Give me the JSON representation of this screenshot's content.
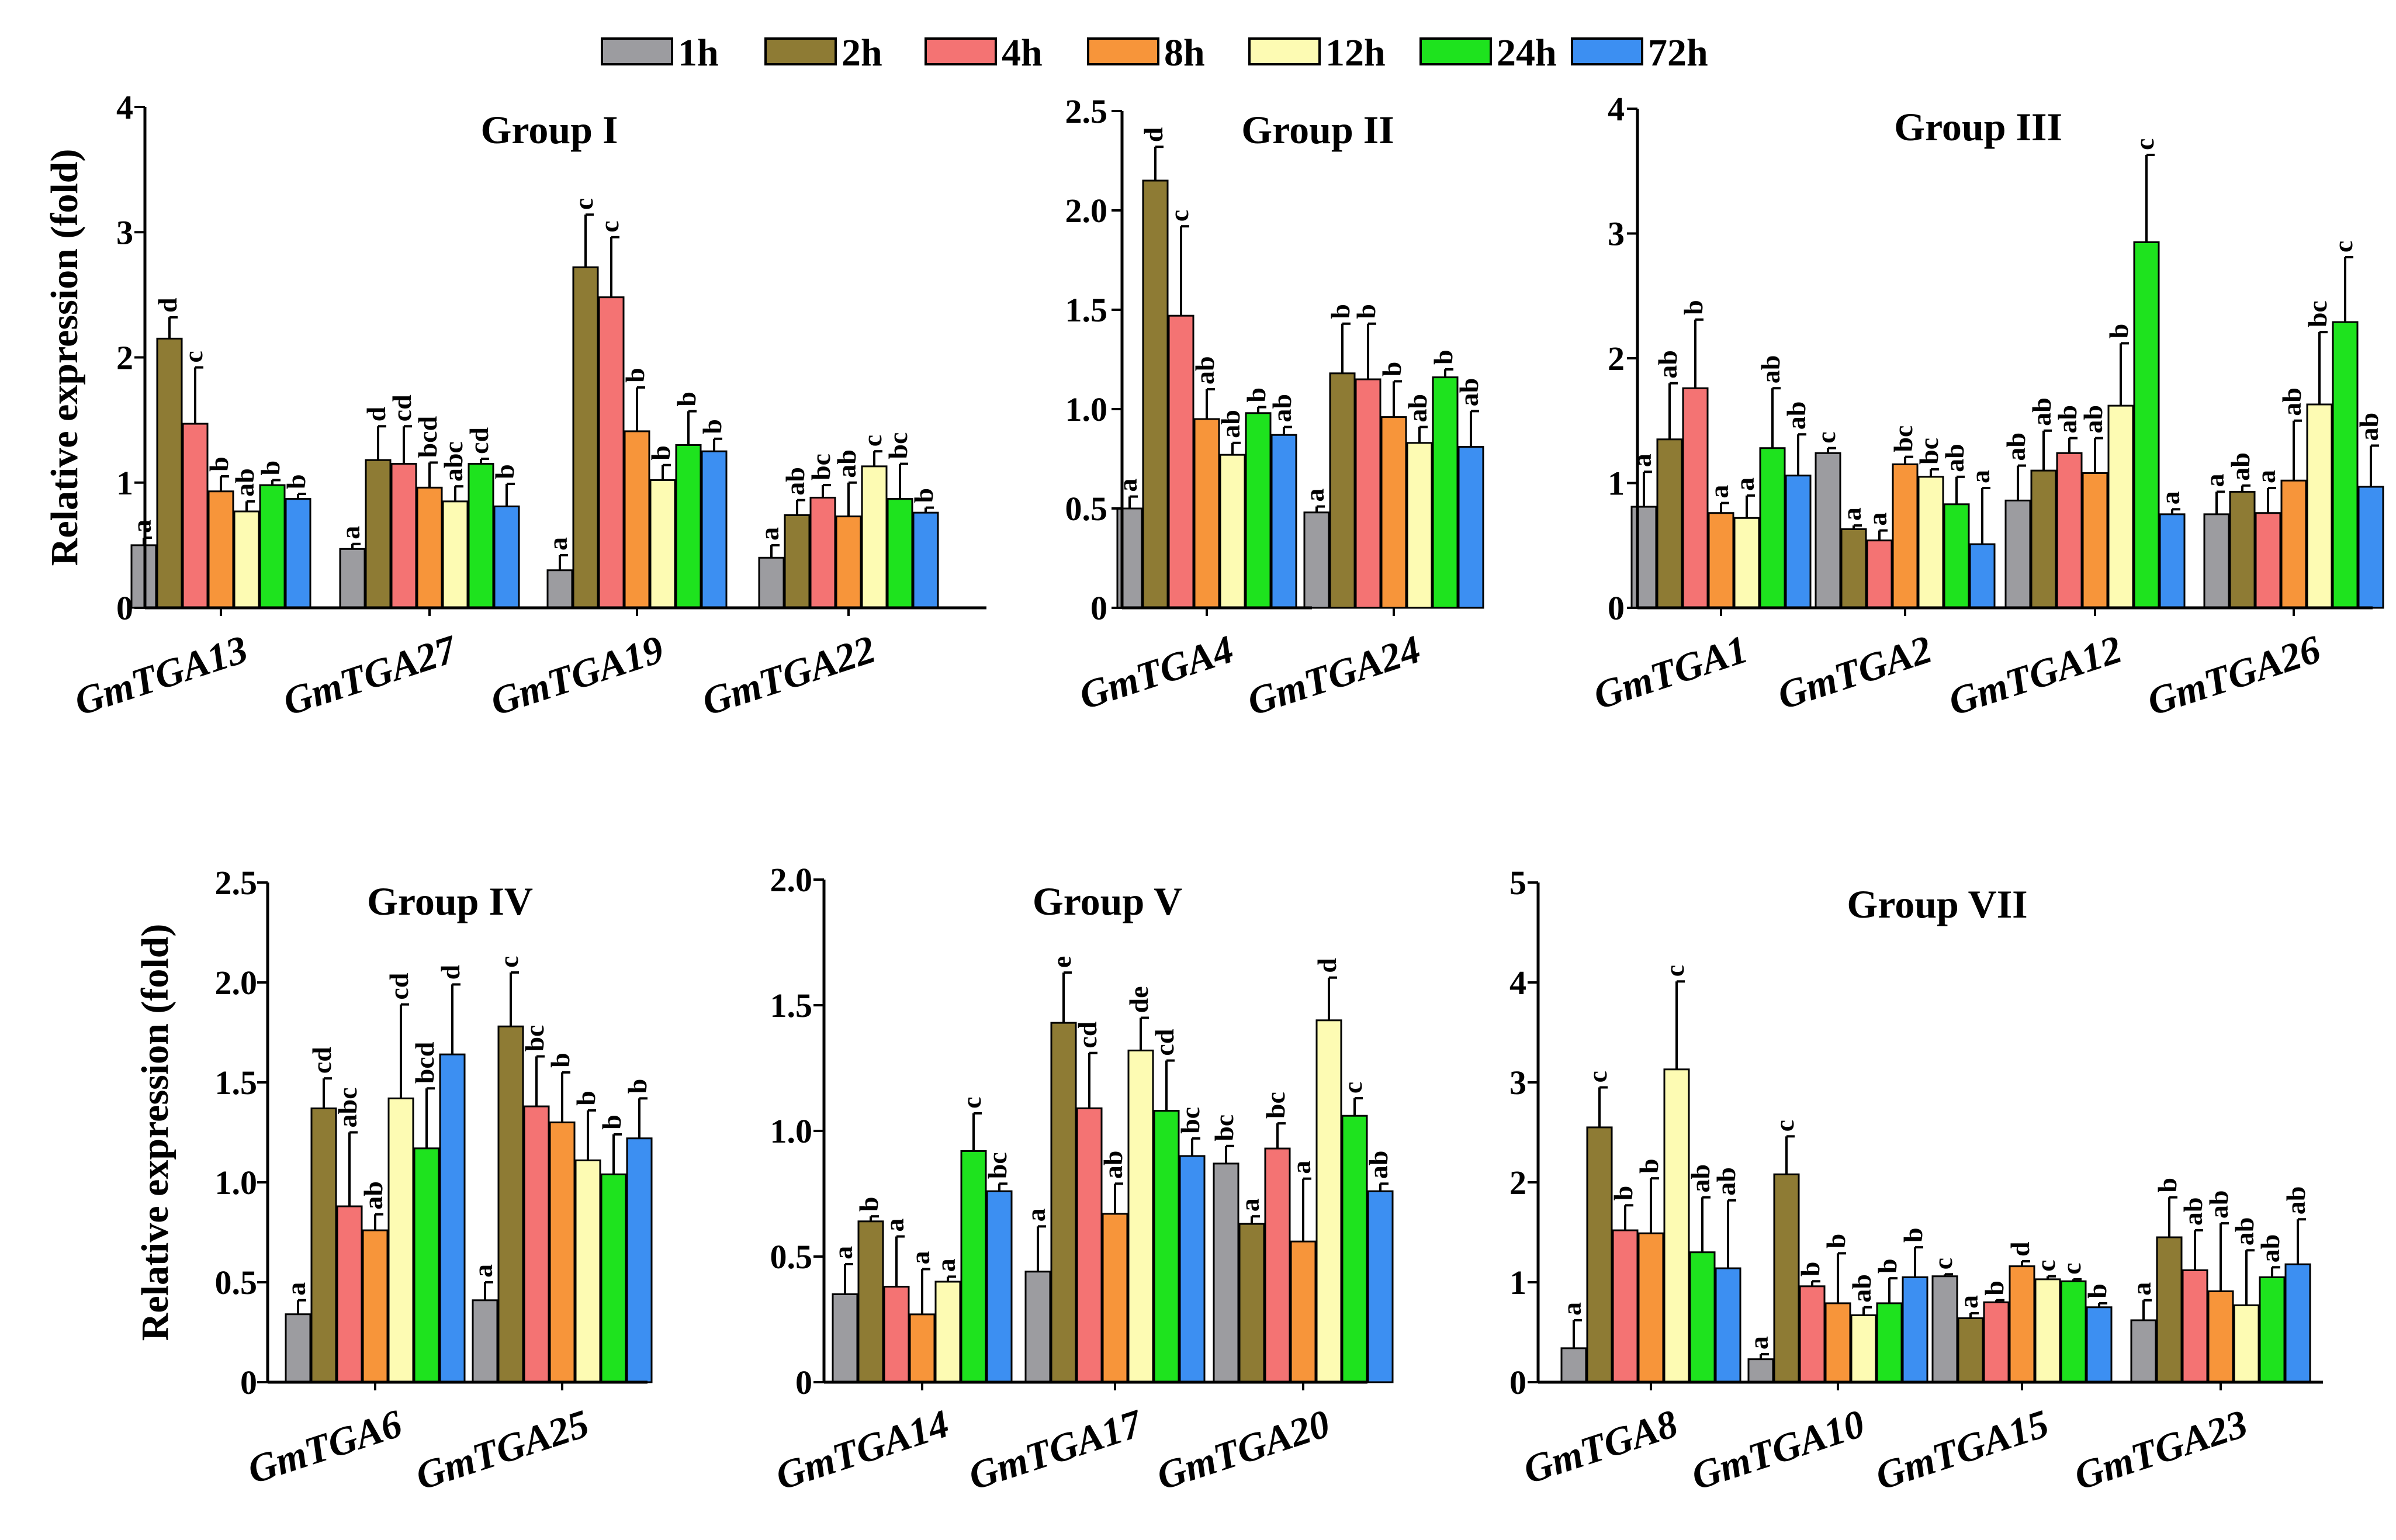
{
  "chart_data": {
    "type": "bar",
    "legend": {
      "position": "top-center",
      "entries": [
        {
          "name": "1h",
          "color": "#9c9ca0"
        },
        {
          "name": "2h",
          "color": "#8e7b34"
        },
        {
          "name": "4h",
          "color": "#f47373"
        },
        {
          "name": "8h",
          "color": "#f7953a"
        },
        {
          "name": "12h",
          "color": "#fdfbb3"
        },
        {
          "name": "24h",
          "color": "#1ee31e"
        },
        {
          "name": "72h",
          "color": "#3c8ff2"
        }
      ]
    },
    "ylabel": "Relative expression (fold)",
    "panels": [
      {
        "title": "Group I",
        "ylim": [
          0,
          4
        ],
        "yticks": [
          "0",
          "1",
          "2",
          "3",
          "4"
        ],
        "categories": [
          "GmTGA13",
          "GmTGA27",
          "GmTGA19",
          "GmTGA22"
        ],
        "values": [
          [
            0.5,
            2.15,
            1.47,
            0.93,
            0.77,
            0.98,
            0.87
          ],
          [
            0.47,
            1.18,
            1.15,
            0.96,
            0.85,
            1.15,
            0.81
          ],
          [
            0.3,
            2.72,
            2.48,
            1.41,
            1.02,
            1.3,
            1.25
          ],
          [
            0.4,
            0.74,
            0.88,
            0.73,
            1.13,
            0.87,
            0.76
          ]
        ],
        "errors": [
          [
            0.06,
            0.17,
            0.45,
            0.12,
            0.08,
            0.04,
            0.04
          ],
          [
            0.04,
            0.27,
            0.3,
            0.2,
            0.12,
            0.04,
            0.18
          ],
          [
            0.12,
            0.42,
            0.48,
            0.35,
            0.12,
            0.27,
            0.1
          ],
          [
            0.1,
            0.12,
            0.1,
            0.27,
            0.12,
            0.28,
            0.04
          ]
        ],
        "labels": [
          [
            "a",
            "d",
            "c",
            "b",
            "ab",
            "b",
            "b"
          ],
          [
            "a",
            "d",
            "cd",
            "bcd",
            "abc",
            "cd",
            "b"
          ],
          [
            "a",
            "c",
            "c",
            "b",
            "b",
            "b",
            "b"
          ],
          [
            "a",
            "ab",
            "bc",
            "ab",
            "c",
            "bc",
            "b"
          ]
        ]
      },
      {
        "title": "Group II",
        "ylim": [
          0,
          2.5
        ],
        "yticks": [
          "0",
          "0.5",
          "1.0",
          "1.5",
          "2.0",
          "2.5"
        ],
        "categories": [
          "GmTGA4",
          "GmTGA24"
        ],
        "values": [
          [
            0.5,
            2.15,
            1.47,
            0.95,
            0.77,
            0.98,
            0.87
          ],
          [
            0.48,
            1.18,
            1.15,
            0.96,
            0.83,
            1.16,
            0.81
          ]
        ],
        "errors": [
          [
            0.06,
            0.17,
            0.45,
            0.15,
            0.06,
            0.03,
            0.04
          ],
          [
            0.03,
            0.25,
            0.28,
            0.18,
            0.08,
            0.04,
            0.18
          ]
        ],
        "labels": [
          [
            "a",
            "d",
            "c",
            "ab",
            "ab",
            "b",
            "ab"
          ],
          [
            "a",
            "b",
            "b",
            "b",
            "ab",
            "b",
            "ab"
          ]
        ]
      },
      {
        "title": "Group III",
        "ylim": [
          0,
          4
        ],
        "yticks": [
          "0",
          "1",
          "2",
          "3",
          "4"
        ],
        "categories": [
          "GmTGA1",
          "GmTGA2",
          "GmTGA12",
          "GmTGA26"
        ],
        "values": [
          [
            0.81,
            1.35,
            1.76,
            0.76,
            0.72,
            1.28,
            1.06
          ],
          [
            1.24,
            0.63,
            0.54,
            1.15,
            1.05,
            0.83,
            0.51
          ],
          [
            0.86,
            1.1,
            1.24,
            1.08,
            1.62,
            2.93,
            0.75
          ],
          [
            0.75,
            0.93,
            0.76,
            1.02,
            1.63,
            2.29,
            0.97
          ]
        ],
        "errors": [
          [
            0.28,
            0.45,
            0.55,
            0.08,
            0.18,
            0.48,
            0.33
          ],
          [
            0.04,
            0.03,
            0.08,
            0.06,
            0.06,
            0.22,
            0.45
          ],
          [
            0.28,
            0.32,
            0.12,
            0.28,
            0.5,
            0.7,
            0.04
          ],
          [
            0.18,
            0.05,
            0.2,
            0.48,
            0.58,
            0.52,
            0.33
          ]
        ],
        "labels": [
          [
            "a",
            "ab",
            "b",
            "a",
            "a",
            "ab",
            "ab"
          ],
          [
            "c",
            "a",
            "a",
            "bc",
            "bc",
            "ab",
            "a"
          ],
          [
            "ab",
            "ab",
            "ab",
            "ab",
            "b",
            "c",
            "a"
          ],
          [
            "a",
            "ab",
            "a",
            "ab",
            "bc",
            "c",
            "ab"
          ]
        ]
      },
      {
        "title": "Group IV",
        "ylim": [
          0,
          2.5
        ],
        "yticks": [
          "0",
          "0.5",
          "1.0",
          "1.5",
          "2.0",
          "2.5"
        ],
        "categories": [
          "GmTGA6",
          "GmTGA25"
        ],
        "values": [
          [
            0.34,
            1.37,
            0.88,
            0.76,
            1.42,
            1.17,
            1.64
          ],
          [
            0.41,
            1.78,
            1.38,
            1.3,
            1.11,
            1.04,
            1.22
          ]
        ],
        "errors": [
          [
            0.07,
            0.15,
            0.37,
            0.08,
            0.47,
            0.3,
            0.35
          ],
          [
            0.09,
            0.27,
            0.25,
            0.25,
            0.25,
            0.2,
            0.2
          ]
        ],
        "labels": [
          [
            "a",
            "cd",
            "abc",
            "ab",
            "cd",
            "bcd",
            "d"
          ],
          [
            "a",
            "c",
            "bc",
            "b",
            "b",
            "b",
            "b"
          ]
        ]
      },
      {
        "title": "Group V",
        "ylim": [
          0,
          2.0
        ],
        "yticks": [
          "0",
          "0.5",
          "1.0",
          "1.5",
          "2.0"
        ],
        "categories": [
          "GmTGA14",
          "GmTGA17",
          "GmTGA20"
        ],
        "values": [
          [
            0.35,
            0.64,
            0.38,
            0.27,
            0.4,
            0.92,
            0.76
          ],
          [
            0.44,
            1.43,
            1.09,
            0.67,
            1.32,
            1.08,
            0.9
          ],
          [
            0.87,
            0.63,
            0.93,
            0.56,
            1.44,
            1.06,
            0.76
          ]
        ],
        "errors": [
          [
            0.12,
            0.02,
            0.2,
            0.18,
            0.02,
            0.15,
            0.03
          ],
          [
            0.18,
            0.2,
            0.22,
            0.12,
            0.13,
            0.2,
            0.07
          ],
          [
            0.07,
            0.03,
            0.1,
            0.25,
            0.17,
            0.07,
            0.03
          ]
        ],
        "labels": [
          [
            "a",
            "b",
            "a",
            "a",
            "a",
            "c",
            "bc"
          ],
          [
            "a",
            "e",
            "cd",
            "ab",
            "de",
            "cd",
            "bc"
          ],
          [
            "bc",
            "a",
            "bc",
            "a",
            "d",
            "c",
            "ab"
          ]
        ]
      },
      {
        "title": "Group VII",
        "ylim": [
          0,
          5
        ],
        "yticks": [
          "0",
          "1",
          "2",
          "3",
          "4",
          "5"
        ],
        "categories": [
          "GmTGA8",
          "GmTGA10",
          "GmTGA15",
          "GmTGA23"
        ],
        "values": [
          [
            0.34,
            2.55,
            1.52,
            1.49,
            3.13,
            1.3,
            1.14
          ],
          [
            0.23,
            2.08,
            0.96,
            0.79,
            0.67,
            0.79,
            1.05
          ],
          [
            1.06,
            0.64,
            0.8,
            1.16,
            1.03,
            1.01,
            0.75
          ],
          [
            0.62,
            1.45,
            1.12,
            0.91,
            0.77,
            1.05,
            1.18
          ]
        ],
        "errors": [
          [
            0.28,
            0.4,
            0.25,
            0.55,
            0.88,
            0.55,
            0.68
          ],
          [
            0.05,
            0.38,
            0.05,
            0.5,
            0.08,
            0.25,
            0.3
          ],
          [
            0.02,
            0.05,
            0.02,
            0.05,
            0.03,
            0.02,
            0.04
          ],
          [
            0.2,
            0.4,
            0.4,
            0.68,
            0.55,
            0.1,
            0.45
          ]
        ],
        "labels": [
          [
            "a",
            "c",
            "b",
            "b",
            "c",
            "ab",
            "ab"
          ],
          [
            "a",
            "c",
            "b",
            "b",
            "ab",
            "b",
            "b"
          ],
          [
            "c",
            "a",
            "b",
            "d",
            "c",
            "c",
            "b"
          ],
          [
            "a",
            "b",
            "ab",
            "ab",
            "ab",
            "ab",
            "ab"
          ]
        ]
      }
    ]
  }
}
